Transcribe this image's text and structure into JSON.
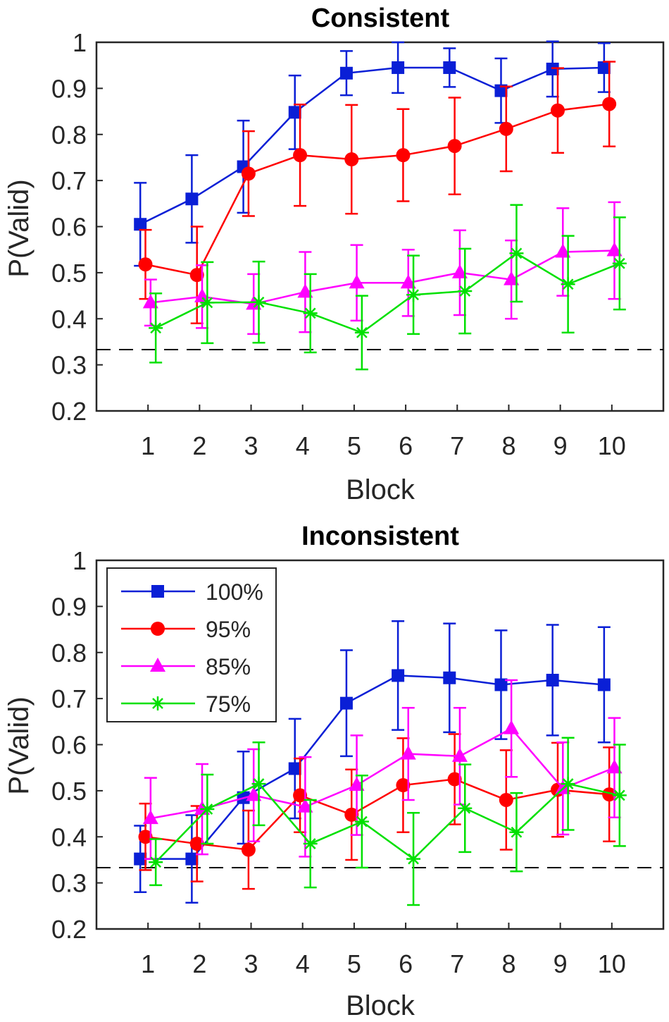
{
  "colors": {
    "100%": "#0a1fd6",
    "95%": "#ff0000",
    "85%": "#ff00ff",
    "75%": "#00e000",
    "axis": "#262626",
    "chance": "#000000"
  },
  "chart_data": [
    {
      "type": "line",
      "title": "Consistent",
      "xlabel": "Block",
      "ylabel": "P(Valid)",
      "xlim": [
        0,
        11
      ],
      "ylim": [
        0.2,
        1.0
      ],
      "xticks": [
        "1",
        "2",
        "3",
        "4",
        "5",
        "6",
        "7",
        "8",
        "9",
        "10"
      ],
      "yticks": [
        "0.2",
        "0.3",
        "0.4",
        "0.5",
        "0.6",
        "0.7",
        "0.8",
        "0.9",
        "1"
      ],
      "chance_level": 0.333,
      "x": [
        1,
        2,
        3,
        4,
        5,
        6,
        7,
        8,
        9,
        10
      ],
      "series": [
        {
          "name": "100%",
          "marker": "square",
          "offset": -0.15,
          "values": [
            0.605,
            0.66,
            0.73,
            0.848,
            0.933,
            0.945,
            0.945,
            0.895,
            0.942,
            0.945
          ],
          "errors": [
            0.09,
            0.095,
            0.1,
            0.08,
            0.048,
            0.055,
            0.042,
            0.07,
            0.06,
            0.053
          ]
        },
        {
          "name": "95%",
          "marker": "circle",
          "offset": -0.05,
          "values": [
            0.518,
            0.495,
            0.715,
            0.755,
            0.746,
            0.755,
            0.775,
            0.812,
            0.852,
            0.866
          ],
          "errors": [
            0.075,
            0.105,
            0.092,
            0.11,
            0.118,
            0.1,
            0.105,
            0.092,
            0.092,
            0.092
          ]
        },
        {
          "name": "85%",
          "marker": "triangle",
          "offset": 0.05,
          "values": [
            0.435,
            0.448,
            0.432,
            0.458,
            0.478,
            0.478,
            0.5,
            0.485,
            0.545,
            0.548
          ],
          "errors": [
            0.05,
            0.068,
            0.065,
            0.087,
            0.082,
            0.072,
            0.092,
            0.085,
            0.095,
            0.105
          ]
        },
        {
          "name": "75%",
          "marker": "star",
          "offset": 0.15,
          "values": [
            0.38,
            0.435,
            0.436,
            0.412,
            0.37,
            0.452,
            0.46,
            0.542,
            0.475,
            0.52
          ],
          "errors": [
            0.075,
            0.088,
            0.088,
            0.085,
            0.08,
            0.085,
            0.092,
            0.105,
            0.105,
            0.1
          ]
        }
      ]
    },
    {
      "type": "line",
      "title": "Inconsistent",
      "xlabel": "Block",
      "ylabel": "P(Valid)",
      "xlim": [
        0,
        11
      ],
      "ylim": [
        0.2,
        1.0
      ],
      "xticks": [
        "1",
        "2",
        "3",
        "4",
        "5",
        "6",
        "7",
        "8",
        "9",
        "10"
      ],
      "yticks": [
        "0.2",
        "0.3",
        "0.4",
        "0.5",
        "0.6",
        "0.7",
        "0.8",
        "0.9",
        "1"
      ],
      "chance_level": 0.333,
      "legend": {
        "position": "top-left",
        "entries": [
          "100%",
          "95%",
          "85%",
          "75%"
        ]
      },
      "x": [
        1,
        2,
        3,
        4,
        5,
        6,
        7,
        8,
        9,
        10
      ],
      "series": [
        {
          "name": "100%",
          "marker": "square",
          "offset": -0.15,
          "values": [
            0.352,
            0.352,
            0.485,
            0.548,
            0.69,
            0.75,
            0.745,
            0.73,
            0.74,
            0.73
          ],
          "errors": [
            0.072,
            0.095,
            0.1,
            0.108,
            0.115,
            0.118,
            0.118,
            0.118,
            0.12,
            0.125
          ]
        },
        {
          "name": "95%",
          "marker": "circle",
          "offset": -0.05,
          "values": [
            0.4,
            0.385,
            0.372,
            0.49,
            0.448,
            0.512,
            0.525,
            0.48,
            0.502,
            0.492
          ],
          "errors": [
            0.072,
            0.082,
            0.085,
            0.08,
            0.098,
            0.102,
            0.098,
            0.108,
            0.102,
            0.102
          ]
        },
        {
          "name": "85%",
          "marker": "triangle",
          "offset": 0.05,
          "values": [
            0.44,
            0.46,
            0.49,
            0.465,
            0.512,
            0.58,
            0.575,
            0.635,
            0.505,
            0.55
          ],
          "errors": [
            0.088,
            0.098,
            0.1,
            0.108,
            0.108,
            0.1,
            0.105,
            0.105,
            0.1,
            0.108
          ]
        },
        {
          "name": "75%",
          "marker": "star",
          "offset": 0.15,
          "values": [
            0.345,
            0.46,
            0.515,
            0.385,
            0.433,
            0.352,
            0.462,
            0.41,
            0.515,
            0.49
          ],
          "errors": [
            0.05,
            0.075,
            0.09,
            0.095,
            0.1,
            0.1,
            0.095,
            0.085,
            0.1,
            0.11
          ]
        }
      ]
    }
  ]
}
